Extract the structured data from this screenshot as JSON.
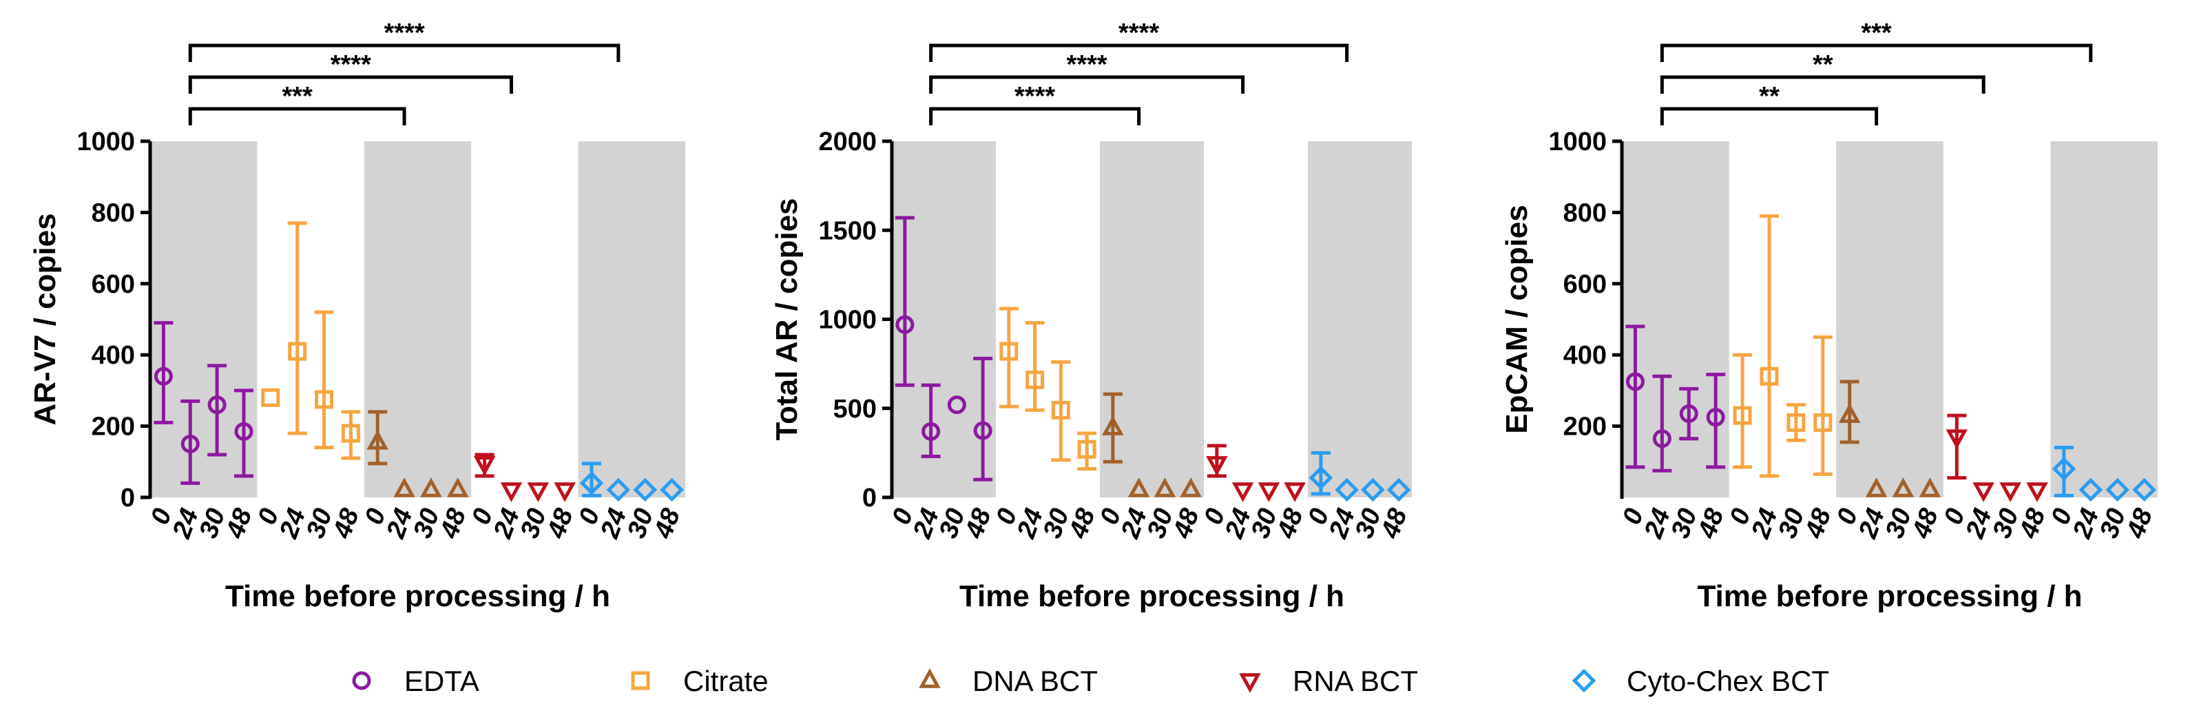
{
  "x_tick_labels": [
    "0",
    "24",
    "30",
    "48"
  ],
  "colors": {
    "EDTA": "#8b1a9e",
    "Citrate": "#f7a541",
    "DNA BCT": "#a0612c",
    "RNA BCT": "#c0101c",
    "Cyto-Chex BCT": "#2a9cf0",
    "shade": "#d3d3d3"
  },
  "legend": [
    {
      "label": "EDTA",
      "marker": "circle"
    },
    {
      "label": "Citrate",
      "marker": "square"
    },
    {
      "label": "DNA BCT",
      "marker": "triangle-up"
    },
    {
      "label": "RNA BCT",
      "marker": "triangle-down"
    },
    {
      "label": "Cyto-Chex BCT",
      "marker": "diamond"
    }
  ],
  "chart_data": [
    {
      "type": "scatter",
      "ylabel": "AR-V7 / copies",
      "xlabel": "Time before processing / h",
      "ylim": [
        0,
        1000
      ],
      "yticks": [
        0,
        200,
        400,
        600,
        800,
        1000
      ],
      "groups": [
        "EDTA",
        "Citrate",
        "DNA BCT",
        "RNA BCT",
        "Cyto-Chex BCT"
      ],
      "series": [
        {
          "name": "EDTA",
          "values": [
            {
              "x": "0",
              "y": 340,
              "low": 210,
              "high": 490
            },
            {
              "x": "24",
              "y": 150,
              "low": 40,
              "high": 270
            },
            {
              "x": "30",
              "y": 260,
              "low": 120,
              "high": 370
            },
            {
              "x": "48",
              "y": 185,
              "low": 60,
              "high": 300
            }
          ]
        },
        {
          "name": "Citrate",
          "values": [
            {
              "x": "0",
              "y": 280,
              "low": 280,
              "high": 280
            },
            {
              "x": "24",
              "y": 410,
              "low": 180,
              "high": 770
            },
            {
              "x": "30",
              "y": 275,
              "low": 140,
              "high": 520
            },
            {
              "x": "48",
              "y": 180,
              "low": 110,
              "high": 240
            }
          ]
        },
        {
          "name": "DNA BCT",
          "values": [
            {
              "x": "0",
              "y": 155,
              "low": 95,
              "high": 240
            },
            {
              "x": "24",
              "y": 5,
              "low": 5,
              "high": 5
            },
            {
              "x": "30",
              "y": 5,
              "low": 5,
              "high": 5
            },
            {
              "x": "48",
              "y": 5,
              "low": 5,
              "high": 5
            }
          ]
        },
        {
          "name": "RNA BCT",
          "values": [
            {
              "x": "0",
              "y": 95,
              "low": 60,
              "high": 120
            },
            {
              "x": "24",
              "y": 5,
              "low": 5,
              "high": 5
            },
            {
              "x": "30",
              "y": 5,
              "low": 5,
              "high": 5
            },
            {
              "x": "48",
              "y": 5,
              "low": 5,
              "high": 5
            }
          ]
        },
        {
          "name": "Cyto-Chex BCT",
          "values": [
            {
              "x": "0",
              "y": 40,
              "low": 5,
              "high": 95
            },
            {
              "x": "24",
              "y": 5,
              "low": 5,
              "high": 5
            },
            {
              "x": "30",
              "y": 5,
              "low": 5,
              "high": 5
            },
            {
              "x": "48",
              "y": 5,
              "low": 5,
              "high": 5
            }
          ]
        }
      ],
      "significance": [
        {
          "from": "EDTA 24",
          "to": "DNA BCT 24",
          "label": "***"
        },
        {
          "from": "EDTA 24",
          "to": "RNA BCT 24",
          "label": "****"
        },
        {
          "from": "EDTA 24",
          "to": "Cyto-Chex BCT 24",
          "label": "****"
        }
      ]
    },
    {
      "type": "scatter",
      "ylabel": "Total AR / copies",
      "xlabel": "Time before processing / h",
      "ylim": [
        0,
        2000
      ],
      "yticks": [
        0,
        500,
        1000,
        1500,
        2000
      ],
      "groups": [
        "EDTA",
        "Citrate",
        "DNA BCT",
        "RNA BCT",
        "Cyto-Chex BCT"
      ],
      "series": [
        {
          "name": "EDTA",
          "values": [
            {
              "x": "0",
              "y": 970,
              "low": 630,
              "high": 1570
            },
            {
              "x": "24",
              "y": 370,
              "low": 230,
              "high": 630
            },
            {
              "x": "30",
              "y": 520,
              "low": 520,
              "high": 520
            },
            {
              "x": "48",
              "y": 375,
              "low": 100,
              "high": 780
            }
          ]
        },
        {
          "name": "Citrate",
          "values": [
            {
              "x": "0",
              "y": 820,
              "low": 510,
              "high": 1060
            },
            {
              "x": "24",
              "y": 660,
              "low": 490,
              "high": 980
            },
            {
              "x": "30",
              "y": 490,
              "low": 210,
              "high": 760
            },
            {
              "x": "48",
              "y": 270,
              "low": 160,
              "high": 360
            }
          ]
        },
        {
          "name": "DNA BCT",
          "values": [
            {
              "x": "0",
              "y": 390,
              "low": 200,
              "high": 580
            },
            {
              "x": "24",
              "y": 10,
              "low": 10,
              "high": 10
            },
            {
              "x": "30",
              "y": 10,
              "low": 10,
              "high": 10
            },
            {
              "x": "48",
              "y": 10,
              "low": 10,
              "high": 10
            }
          ]
        },
        {
          "name": "RNA BCT",
          "values": [
            {
              "x": "0",
              "y": 190,
              "low": 120,
              "high": 290
            },
            {
              "x": "24",
              "y": 20,
              "low": 20,
              "high": 20
            },
            {
              "x": "30",
              "y": 20,
              "low": 20,
              "high": 20
            },
            {
              "x": "48",
              "y": 20,
              "low": 20,
              "high": 20
            }
          ]
        },
        {
          "name": "Cyto-Chex BCT",
          "values": [
            {
              "x": "0",
              "y": 110,
              "low": 20,
              "high": 250
            },
            {
              "x": "24",
              "y": 10,
              "low": 10,
              "high": 10
            },
            {
              "x": "30",
              "y": 10,
              "low": 10,
              "high": 10
            },
            {
              "x": "48",
              "y": 10,
              "low": 10,
              "high": 10
            }
          ]
        }
      ],
      "significance": [
        {
          "from": "EDTA 24",
          "to": "DNA BCT 24",
          "label": "****"
        },
        {
          "from": "EDTA 24",
          "to": "RNA BCT 24",
          "label": "****"
        },
        {
          "from": "EDTA 24",
          "to": "Cyto-Chex BCT 24",
          "label": "****"
        }
      ]
    },
    {
      "type": "scatter",
      "ylabel": "EpCAM / copies",
      "xlabel": "Time before processing / h",
      "ylim": [
        0,
        1000
      ],
      "yticks": [
        200,
        400,
        600,
        800,
        1000
      ],
      "groups": [
        "EDTA",
        "Citrate",
        "DNA BCT",
        "RNA BCT",
        "Cyto-Chex BCT"
      ],
      "series": [
        {
          "name": "EDTA",
          "values": [
            {
              "x": "0",
              "y": 325,
              "low": 85,
              "high": 480
            },
            {
              "x": "24",
              "y": 165,
              "low": 75,
              "high": 340
            },
            {
              "x": "30",
              "y": 235,
              "low": 165,
              "high": 305
            },
            {
              "x": "48",
              "y": 225,
              "low": 85,
              "high": 345
            }
          ]
        },
        {
          "name": "Citrate",
          "values": [
            {
              "x": "0",
              "y": 230,
              "low": 85,
              "high": 400
            },
            {
              "x": "24",
              "y": 340,
              "low": 60,
              "high": 790
            },
            {
              "x": "30",
              "y": 210,
              "low": 160,
              "high": 260
            },
            {
              "x": "48",
              "y": 210,
              "low": 65,
              "high": 450
            }
          ]
        },
        {
          "name": "DNA BCT",
          "values": [
            {
              "x": "0",
              "y": 230,
              "low": 155,
              "high": 325
            },
            {
              "x": "24",
              "y": 5,
              "low": 5,
              "high": 5
            },
            {
              "x": "30",
              "y": 5,
              "low": 5,
              "high": 5
            },
            {
              "x": "48",
              "y": 5,
              "low": 5,
              "high": 5
            }
          ]
        },
        {
          "name": "RNA BCT",
          "values": [
            {
              "x": "0",
              "y": 170,
              "low": 55,
              "high": 230
            },
            {
              "x": "24",
              "y": 5,
              "low": 5,
              "high": 5
            },
            {
              "x": "30",
              "y": 5,
              "low": 5,
              "high": 5
            },
            {
              "x": "48",
              "y": 5,
              "low": 5,
              "high": 5
            }
          ]
        },
        {
          "name": "Cyto-Chex BCT",
          "values": [
            {
              "x": "0",
              "y": 80,
              "low": 5,
              "high": 140
            },
            {
              "x": "24",
              "y": 5,
              "low": 5,
              "high": 5
            },
            {
              "x": "30",
              "y": 5,
              "low": 5,
              "high": 5
            },
            {
              "x": "48",
              "y": 5,
              "low": 5,
              "high": 5
            }
          ]
        }
      ],
      "significance": [
        {
          "from": "EDTA 24",
          "to": "DNA BCT 24",
          "label": "**"
        },
        {
          "from": "EDTA 24",
          "to": "RNA BCT 24",
          "label": "**"
        },
        {
          "from": "EDTA 24",
          "to": "Cyto-Chex BCT 24",
          "label": "***"
        }
      ]
    }
  ]
}
